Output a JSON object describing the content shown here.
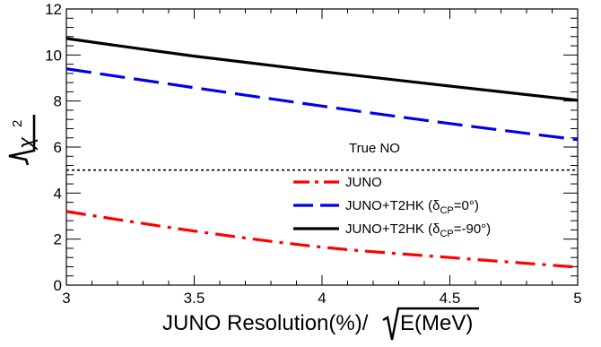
{
  "chart_data": {
    "type": "line",
    "title": "",
    "xlabel_prefix": "JUNO Resolution(%)/",
    "xlabel_radicand": "E(MeV)",
    "ylabel_symbol": "χ",
    "ylabel_exponent": "2",
    "xlim": [
      3,
      5
    ],
    "ylim": [
      0,
      12
    ],
    "x_ticks": [
      "3",
      "3.5",
      "4",
      "4.5",
      "5"
    ],
    "y_ticks": [
      "0",
      "2",
      "4",
      "6",
      "8",
      "10",
      "12"
    ],
    "grid": false,
    "annotation": "True NO",
    "reference_line": {
      "y": 5,
      "style": "dotted",
      "color": "#000000"
    },
    "legend_position": "center-right",
    "series": [
      {
        "label_main": "JUNO",
        "label_sub": "",
        "label_tail": "",
        "color": "#ff0000",
        "style": "dashdot",
        "x": [
          3,
          3.5,
          4,
          4.5,
          5
        ],
        "y": [
          3.2,
          2.35,
          1.65,
          1.2,
          0.78
        ]
      },
      {
        "label_main": "JUNO+T2HK (δ",
        "label_sub": "CP",
        "label_tail": "=0°)",
        "color": "#0000ee",
        "style": "dashed",
        "x": [
          3,
          3.5,
          4,
          4.5,
          5
        ],
        "y": [
          9.4,
          8.58,
          7.78,
          7.02,
          6.32
        ]
      },
      {
        "label_main": "JUNO+T2HK (δ",
        "label_sub": "CP",
        "label_tail": "=-90°)",
        "color": "#000000",
        "style": "solid",
        "x": [
          3,
          3.5,
          4,
          4.5,
          5
        ],
        "y": [
          10.72,
          9.95,
          9.28,
          8.65,
          8.03
        ]
      }
    ]
  }
}
